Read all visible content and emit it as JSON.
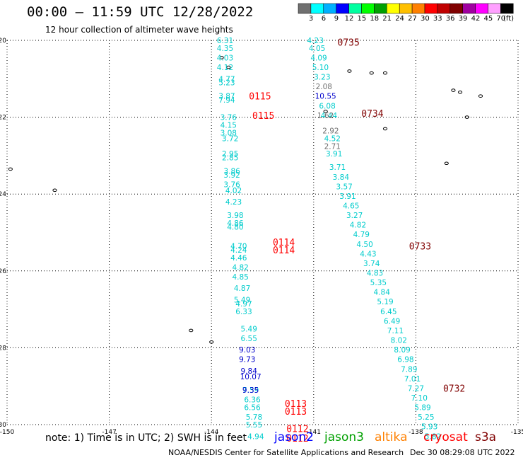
{
  "header": {
    "title": "00:00 – 11:59 UTC 12/28/2022",
    "subtitle": "12 hour collection of altimeter wave heights"
  },
  "colorbar": {
    "colors": [
      "#707070",
      "#00ffff",
      "#00b0ff",
      "#0000ff",
      "#00ffa0",
      "#00ff00",
      "#00a000",
      "#ffff00",
      "#ffc000",
      "#ff8000",
      "#ff0000",
      "#c00000",
      "#800000",
      "#a000a0",
      "#ff00ff",
      "#ffa0ff",
      "#000000"
    ],
    "labels": [
      "3",
      "6",
      "9",
      "12",
      "15",
      "18",
      "21",
      "24",
      "27",
      "30",
      "33",
      "36",
      "39",
      "42",
      "45",
      "70"
    ],
    "unit": "(ft)"
  },
  "footer": {
    "note": "note:  1) Time is in UTC;  2) SWH is in feet",
    "satellites": [
      {
        "name": "jason2",
        "color": "#0000ff"
      },
      {
        "name": "jason3",
        "color": "#00a000"
      },
      {
        "name": "altika",
        "color": "#ff8000"
      },
      {
        "name": "cryosat",
        "color": "#ff0000"
      },
      {
        "name": "s3a",
        "color": "#800000"
      }
    ],
    "credit": "NOAA/NESDIS Center for Satellite Applications and Research",
    "timestamp": "Dec 30 08:29:08 UTC 2022"
  },
  "chart_data": {
    "type": "scatter",
    "xlim": [
      -150,
      -135
    ],
    "ylim": [
      -30,
      -20
    ],
    "xticks": [
      "-150",
      "-147",
      "-144",
      "-141",
      "-138",
      "-135"
    ],
    "yticks": [
      "-20",
      "-22",
      "-24",
      "-26",
      "-28",
      "-30"
    ],
    "grid": true,
    "series": [
      {
        "name": "",
        "color": "#00cccc",
        "x": [
          -143.6,
          -143.6,
          -143.6,
          -143.6,
          -143.55,
          -143.55,
          -143.55,
          -143.55,
          -143.5,
          -143.5,
          -143.5,
          -143.45,
          -143.45,
          -143.45,
          -143.4,
          -143.4,
          -143.4,
          -143.35,
          -143.35,
          -143.3,
          -143.3,
          -143.3,
          -143.2,
          -143.2,
          -143.2,
          -143.15,
          -143.15,
          -143.1,
          -143.1,
          -143.05,
          -143.05,
          -142.9,
          -142.9,
          -142.85,
          -142.8,
          -142.8
        ],
        "y": [
          -20.0,
          -20.2,
          -20.45,
          -20.7,
          -21.0,
          -21.1,
          -21.45,
          -21.55,
          -22.0,
          -22.2,
          -22.4,
          -22.55,
          -22.95,
          -23.05,
          -23.4,
          -23.5,
          -23.75,
          -23.9,
          -24.2,
          -24.55,
          -24.75,
          -24.85,
          -25.35,
          -25.45,
          -25.65,
          -25.9,
          -26.15,
          -26.45,
          -26.75,
          -26.85,
          -27.05,
          -27.5,
          -27.75,
          -29.1,
          -29.35,
          -29.55
        ],
        "labels": [
          "6.31",
          "4.35",
          "4.03",
          "4.12",
          "4.77",
          "5.23",
          "3.87",
          "7.94",
          "3.76",
          "4.15",
          "3.08",
          "3.72",
          "2.95",
          "2.85",
          "3.86",
          "3.92",
          "3.76",
          "4.02",
          "4.23",
          "3.98",
          "4.86",
          "4.80",
          "4.70",
          "4.24",
          "4.46",
          "4.82",
          "4.85",
          "4.87",
          "5.49",
          "4.97",
          "6.33",
          "5.49",
          "6.55",
          "7.59",
          "6.36",
          "6.56"
        ]
      },
      {
        "name": "",
        "color": "#0000cc",
        "x": [
          -142.95,
          -142.95,
          -142.9,
          -142.85,
          -142.85
        ],
        "y": [
          -28.05,
          -28.3,
          -28.6,
          -28.75,
          -29.1
        ],
        "labels": [
          "9.03",
          "9.73",
          "9.84",
          "10.07",
          "9.35"
        ]
      },
      {
        "name": "",
        "color": "#00cccc",
        "x": [
          -142.75,
          -142.75,
          -142.7
        ],
        "y": [
          -29.8,
          -30.0,
          -30.3
        ],
        "labels": [
          "5.78",
          "5.55",
          "4.94"
        ]
      },
      {
        "name": "",
        "color": "#00cccc",
        "x": [
          -140.95,
          -140.9,
          -140.85,
          -140.8,
          -140.75,
          -140.6,
          -140.55,
          -140.45,
          -140.4,
          -140.3,
          -140.2,
          -140.1,
          -140.0,
          -139.9,
          -139.8,
          -139.7,
          -139.6,
          -139.5,
          -139.4,
          -139.3,
          -139.2,
          -139.1,
          -139.0,
          -138.9,
          -138.8,
          -138.7,
          -138.6,
          -138.5,
          -138.4,
          -138.3,
          -138.2,
          -138.1,
          -138.0,
          -137.9,
          -137.8,
          -137.7,
          -137.6,
          -137.5
        ],
        "y": [
          -20.0,
          -20.2,
          -20.45,
          -20.7,
          -20.95,
          -21.7,
          -21.95,
          -22.55,
          -22.95,
          -23.3,
          -23.55,
          -23.8,
          -24.05,
          -24.3,
          -24.55,
          -24.8,
          -25.05,
          -25.3,
          -25.55,
          -25.8,
          -26.05,
          -26.3,
          -26.55,
          -26.8,
          -27.05,
          -27.3,
          -27.55,
          -27.8,
          -28.05,
          -28.3,
          -28.55,
          -28.8,
          -29.05,
          -29.3,
          -29.55,
          -29.8,
          -30.05,
          -30.3
        ],
        "labels": [
          "4.23",
          "4.05",
          "4.09",
          "5.10",
          "3.23",
          "6.08",
          "4.44",
          "4.52",
          "3.91",
          "3.71",
          "3.84",
          "3.57",
          "3.91",
          "4.65",
          "3.27",
          "4.82",
          "4.79",
          "4.50",
          "4.43",
          "3.74",
          "4.83",
          "5.35",
          "4.84",
          "5.19",
          "6.45",
          "6.49",
          "7.11",
          "8.02",
          "8.09",
          "6.98",
          "7.89",
          "7.01",
          "7.27",
          "7.10",
          "5.89",
          "5.25",
          "5.93",
          "5.82"
        ]
      },
      {
        "name": "",
        "color": "#707070",
        "x": [
          -140.7,
          -140.65,
          -140.5,
          -140.45
        ],
        "y": [
          -21.2,
          -21.95,
          -22.35,
          -22.75
        ],
        "labels": [
          "2.08",
          "1.62",
          "2.92",
          "2.71"
        ]
      },
      {
        "name": "",
        "color": "#0000cc",
        "x": [
          -140.65
        ],
        "y": [
          -21.45
        ],
        "labels": [
          "10.55"
        ]
      }
    ],
    "pass_times": [
      {
        "label": "0735",
        "x": -140.3,
        "y": -20.05,
        "color": "#800000"
      },
      {
        "label": "0734",
        "x": -139.6,
        "y": -21.9,
        "color": "#800000"
      },
      {
        "label": "0733",
        "x": -138.2,
        "y": -25.35,
        "color": "#800000"
      },
      {
        "label": "0732",
        "x": -137.2,
        "y": -29.05,
        "color": "#800000"
      },
      {
        "label": "0115",
        "x": -142.9,
        "y": -21.45,
        "color": "#ff0000"
      },
      {
        "label": "0115",
        "x": -142.8,
        "y": -21.95,
        "color": "#ff0000"
      },
      {
        "label": "0114",
        "x": -142.2,
        "y": -25.25,
        "color": "#ff0000"
      },
      {
        "label": "0114",
        "x": -142.2,
        "y": -25.45,
        "color": "#ff0000"
      },
      {
        "label": "0113",
        "x": -141.85,
        "y": -29.45,
        "color": "#ff0000"
      },
      {
        "label": "0113",
        "x": -141.85,
        "y": -29.65,
        "color": "#ff0000"
      },
      {
        "label": "0112",
        "x": -141.8,
        "y": -30.1,
        "color": "#ff0000"
      },
      {
        "label": "0112",
        "x": -141.8,
        "y": -30.35,
        "color": "#ff0000"
      }
    ]
  }
}
